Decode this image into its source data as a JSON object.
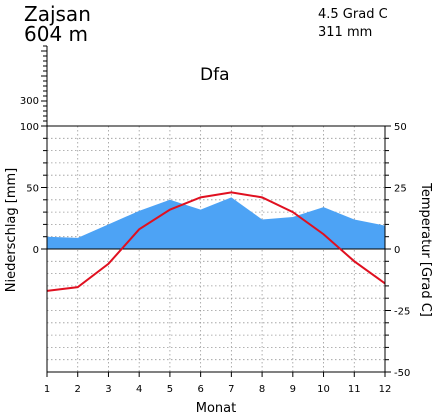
{
  "header": {
    "station": "Zajsan",
    "elevation": "604 m",
    "annual_temp": "4.5 Grad C",
    "annual_precip": "311 mm",
    "climate_class": "Dfa"
  },
  "chart_data": {
    "type": "line",
    "title": "",
    "xlabel": "Monat",
    "ylabel_left": "Niederschlag [mm]",
    "ylabel_right": "Temperatur [Grad C]",
    "categories": [
      1,
      2,
      3,
      4,
      5,
      6,
      7,
      8,
      9,
      10,
      11,
      12
    ],
    "x_ticks": [
      "1",
      "2",
      "3",
      "4",
      "5",
      "6",
      "7",
      "8",
      "9",
      "10",
      "11",
      "12"
    ],
    "precip_ticks": [
      "0",
      "50",
      "100",
      "300"
    ],
    "temp_ticks": [
      "-50",
      "-25",
      "0",
      "25",
      "50"
    ],
    "precip_ylim": [
      -100,
      100
    ],
    "temp_ylim": [
      -50,
      50
    ],
    "grid": true,
    "series": [
      {
        "axis": "left",
        "kind": "area",
        "values": [
          10,
          9,
          20,
          31,
          40,
          32,
          42,
          24,
          26,
          34,
          24,
          19
        ],
        "color": "#4da3f5"
      },
      {
        "axis": "right",
        "kind": "line",
        "values": [
          -17,
          -15.5,
          -6,
          8,
          16,
          21,
          23,
          21,
          15,
          6,
          -5,
          -14
        ],
        "color": "#e01020"
      }
    ]
  }
}
